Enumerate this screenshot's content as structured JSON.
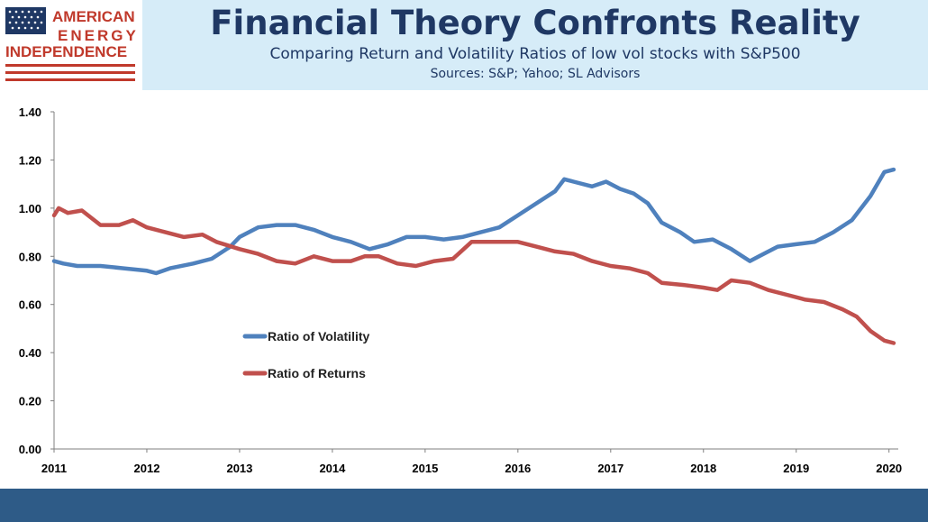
{
  "header": {
    "title": "Financial Theory Confronts Reality",
    "subtitle": "Comparing Return and Volatility Ratios of low vol stocks with S&P500",
    "sources": "Sources: S&P; Yahoo; SL Advisors"
  },
  "logo": {
    "line1": "AMERICAN",
    "line2": "ENERGY",
    "line3": "INDEPENDENCE",
    "colors": {
      "blue": "#1f3864",
      "red": "#c0392b"
    }
  },
  "colors": {
    "header_band": "#d6ecf8",
    "footer": "#2e5b87",
    "title": "#1f3864"
  },
  "chart_data": {
    "type": "line",
    "title": "",
    "xlabel": "",
    "ylabel": "",
    "ylim": [
      0,
      1.4
    ],
    "xlim": [
      2011,
      2020.1
    ],
    "yticks": [
      "0.00",
      "0.20",
      "0.40",
      "0.60",
      "0.80",
      "1.00",
      "1.20",
      "1.40"
    ],
    "xticks": [
      "2011",
      "2012",
      "2013",
      "2014",
      "2015",
      "2016",
      "2017",
      "2018",
      "2019",
      "2020"
    ],
    "grid": false,
    "legend_position": "left-middle",
    "series": [
      {
        "name": "Ratio of Volatility",
        "color": "#4f81bd",
        "x": [
          2011.0,
          2011.1,
          2011.25,
          2011.5,
          2011.75,
          2012.0,
          2012.1,
          2012.25,
          2012.5,
          2012.7,
          2012.9,
          2013.0,
          2013.2,
          2013.4,
          2013.6,
          2013.8,
          2014.0,
          2014.2,
          2014.4,
          2014.6,
          2014.8,
          2015.0,
          2015.2,
          2015.4,
          2015.6,
          2015.8,
          2016.0,
          2016.2,
          2016.4,
          2016.5,
          2016.6,
          2016.8,
          2016.95,
          2017.1,
          2017.25,
          2017.4,
          2017.55,
          2017.75,
          2017.9,
          2018.1,
          2018.3,
          2018.5,
          2018.6,
          2018.8,
          2019.0,
          2019.2,
          2019.4,
          2019.6,
          2019.8,
          2019.95,
          2020.05
        ],
        "values": [
          0.78,
          0.77,
          0.76,
          0.76,
          0.75,
          0.74,
          0.73,
          0.75,
          0.77,
          0.79,
          0.84,
          0.88,
          0.92,
          0.93,
          0.93,
          0.91,
          0.88,
          0.86,
          0.83,
          0.85,
          0.88,
          0.88,
          0.87,
          0.88,
          0.9,
          0.92,
          0.97,
          1.02,
          1.07,
          1.12,
          1.11,
          1.09,
          1.11,
          1.08,
          1.06,
          1.02,
          0.94,
          0.9,
          0.86,
          0.87,
          0.83,
          0.78,
          0.8,
          0.84,
          0.85,
          0.86,
          0.9,
          0.95,
          1.05,
          1.15,
          1.16
        ]
      },
      {
        "name": "Ratio of Returns",
        "color": "#c0504d",
        "x": [
          2011.0,
          2011.05,
          2011.15,
          2011.3,
          2011.5,
          2011.7,
          2011.85,
          2012.0,
          2012.2,
          2012.4,
          2012.6,
          2012.75,
          2013.0,
          2013.2,
          2013.4,
          2013.6,
          2013.8,
          2014.0,
          2014.2,
          2014.35,
          2014.5,
          2014.7,
          2014.9,
          2015.1,
          2015.3,
          2015.5,
          2015.7,
          2015.9,
          2016.0,
          2016.2,
          2016.4,
          2016.6,
          2016.8,
          2017.0,
          2017.2,
          2017.4,
          2017.55,
          2017.8,
          2018.0,
          2018.15,
          2018.3,
          2018.5,
          2018.7,
          2018.9,
          2019.1,
          2019.3,
          2019.5,
          2019.65,
          2019.8,
          2019.95,
          2020.05
        ],
        "values": [
          0.97,
          1.0,
          0.98,
          0.99,
          0.93,
          0.93,
          0.95,
          0.92,
          0.9,
          0.88,
          0.89,
          0.86,
          0.83,
          0.81,
          0.78,
          0.77,
          0.8,
          0.78,
          0.78,
          0.8,
          0.8,
          0.77,
          0.76,
          0.78,
          0.79,
          0.86,
          0.86,
          0.86,
          0.86,
          0.84,
          0.82,
          0.81,
          0.78,
          0.76,
          0.75,
          0.73,
          0.69,
          0.68,
          0.67,
          0.66,
          0.7,
          0.69,
          0.66,
          0.64,
          0.62,
          0.61,
          0.58,
          0.55,
          0.49,
          0.45,
          0.44
        ]
      }
    ]
  }
}
